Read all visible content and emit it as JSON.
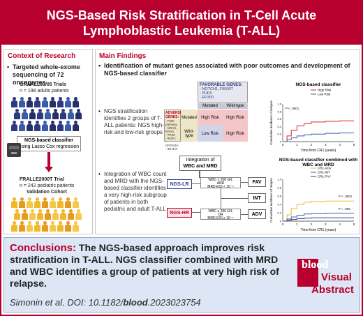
{
  "header": {
    "title_line1": "NGS-Based Risk Stratification in T-Cell Acute",
    "title_line2": "Lymphoblastic Leukemia (T-ALL)"
  },
  "context": {
    "title": "Context of Research",
    "bullet": "Targeted whole-exome sequencing of 72 oncogenes",
    "trial1_name": "GRAALL03/05 Trials",
    "trial1_n": "n = 198 adults patients",
    "classifier_box_line1": "NGS-based classifier",
    "classifier_box_line2": "using Lasso Cox regression",
    "trial2_name": "FRALLE2000T Trial",
    "trial2_n": "n = 242 pediatric patients",
    "validation": "Validation Cohort"
  },
  "findings": {
    "title": "Main Findings",
    "bullet1": "Identification of mutant genes associated with poor outcomes and development of NGS-based classifier",
    "bullet2": "NGS stratification identifies 2 groups of T-ALL patients: NGS high-risk and low-risk groups",
    "bullet3": "Integration of WBC count and MRD with the NGS-based classifier identifies a very high-risk subgroup of patients in both pediatric and adult T-ALL",
    "favorable_title": "FAVORABLE GENES:",
    "favorable_genes": "- NOTCH1, FBXW7\n- PHF6\n- EP300",
    "adverse_title": "ADVERSE GENES:",
    "adverse_genes": "- PI3K pathway\n- NRAS, KRAS\n- TP53\n- IKZF1\n- DNTM3A\n- IDH1/2",
    "col_mutated": "Mutated",
    "col_wildtype": "Wild-type",
    "row_mutated": "Mutated",
    "row_wildtype": "Wild-type",
    "cell_hr": "High Risk",
    "cell_lr": "Low Risk",
    "integration_label_line1": "Integration of",
    "integration_label_line2": "WBC and MRD",
    "ngs_lr": "NGS-LR",
    "ngs_hr": "NGS-HR",
    "cond_and_1": "WBC < 200 G/L",
    "cond_and_2": "AND",
    "cond_and_3": "MRD EOI < 10⁻⁴",
    "cond_or_1": "WBC ≥ 200 G/L",
    "cond_or_2": "OR",
    "cond_or_3": "MRD EOI ≥ 10⁻⁴",
    "fav": "FAV",
    "int": "INT",
    "adv": "ADV"
  },
  "chart_data": [
    {
      "type": "line",
      "title": "NGS-based classifier",
      "xlabel": "Time from CR1 (years)",
      "ylabel": "Cumulative incidence of relapse",
      "xlim": [
        0,
        5
      ],
      "ylim": [
        0,
        1
      ],
      "x_ticks": [
        "0",
        "1",
        "2",
        "3",
        "4",
        "5"
      ],
      "y_ticks": [
        "0",
        "0.2",
        "0.4",
        "0.6",
        "0.8",
        "1.0"
      ],
      "annotation": "P < .0001",
      "series": [
        {
          "name": "High Risk",
          "color": "#d8232a",
          "x": [
            0,
            0.3,
            0.6,
            1,
            1.5,
            2,
            3,
            4,
            5
          ],
          "y": [
            0,
            0.15,
            0.3,
            0.42,
            0.48,
            0.52,
            0.54,
            0.55,
            0.55
          ]
        },
        {
          "name": "Low Risk",
          "color": "#3a5ba8",
          "x": [
            0,
            0.3,
            0.6,
            1,
            1.5,
            2,
            3,
            4,
            5
          ],
          "y": [
            0,
            0.05,
            0.1,
            0.15,
            0.18,
            0.2,
            0.22,
            0.23,
            0.23
          ]
        }
      ]
    },
    {
      "type": "line",
      "title": "NGS-based classifier combined with WBC and MRD",
      "xlabel": "Time from CR1 (years)",
      "ylabel": "Cumulative incidence of relapse",
      "xlim": [
        0,
        5
      ],
      "ylim": [
        0,
        1
      ],
      "x_ticks": [
        "0",
        "1",
        "2",
        "3",
        "4",
        "5"
      ],
      "y_ticks": [
        "0",
        "0.2",
        "0.4",
        "0.6",
        "0.8",
        "1.0"
      ],
      "annotations": [
        "P < .0001",
        "P = .005"
      ],
      "series": [
        {
          "name": "CR1-ADV",
          "color": "#f2b82b",
          "x": [
            0,
            0.3,
            0.6,
            1,
            1.5,
            2,
            3,
            4,
            5
          ],
          "y": [
            0,
            0.15,
            0.3,
            0.4,
            0.45,
            0.47,
            0.48,
            0.48,
            0.48
          ]
        },
        {
          "name": "CR1-INT",
          "color": "#3a5ba8",
          "x": [
            0,
            0.3,
            0.6,
            1,
            1.5,
            2,
            3,
            4,
            5
          ],
          "y": [
            0,
            0.05,
            0.1,
            0.14,
            0.17,
            0.18,
            0.19,
            0.19,
            0.19
          ]
        },
        {
          "name": "CR1-FAV",
          "color": "#2d3a80",
          "x": [
            0,
            0.3,
            0.6,
            1,
            1.5,
            2,
            3,
            4,
            5
          ],
          "y": [
            0,
            0.02,
            0.04,
            0.06,
            0.07,
            0.08,
            0.08,
            0.08,
            0.08
          ]
        }
      ]
    }
  ],
  "conclusions": {
    "label": "Conclusions:",
    "text": "The NGS-based approach improves risk stratification in T-ALL. NGS classifier combined with MRD and WBC identifies a group of patients at very high risk of relapse.",
    "cite_prefix": "Simonin et al. DOI: 10.1182/",
    "cite_bold": "blood",
    "cite_suffix": ".2023023754",
    "logo_word": "blood",
    "logo_line1": "Visual",
    "logo_line2": "Abstract"
  }
}
